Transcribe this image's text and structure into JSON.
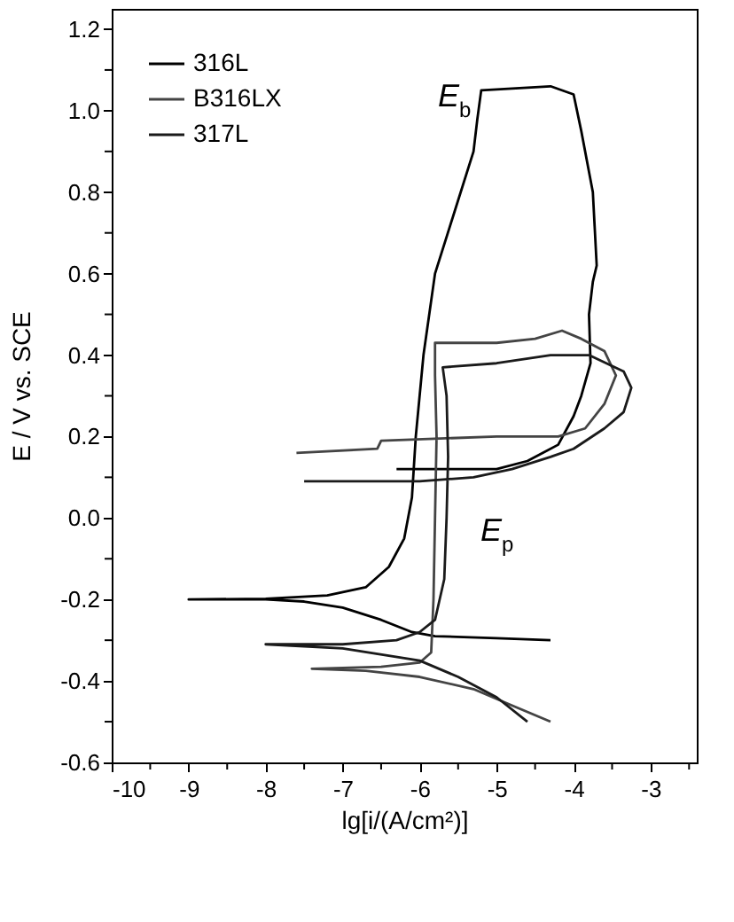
{
  "chart_data": {
    "type": "line",
    "xlabel": "lg[i/(A/cm²)]",
    "ylabel": "E / V vs. SCE",
    "xlim": [
      -10,
      -2.4
    ],
    "ylim": [
      -0.6,
      1.25
    ],
    "xticks": [
      {
        "value": -10,
        "label": "-10"
      },
      {
        "value": -9.5,
        "label": null
      },
      {
        "value": -9,
        "label": "-9"
      },
      {
        "value": -8.5,
        "label": null
      },
      {
        "value": -8,
        "label": "-8"
      },
      {
        "value": -7.5,
        "label": null
      },
      {
        "value": -7,
        "label": "-7"
      },
      {
        "value": -6.5,
        "label": null
      },
      {
        "value": -6,
        "label": "-6"
      },
      {
        "value": -5.5,
        "label": null
      },
      {
        "value": -5,
        "label": "-5"
      },
      {
        "value": -4.5,
        "label": null
      },
      {
        "value": -4,
        "label": "-4"
      },
      {
        "value": -3.5,
        "label": null
      },
      {
        "value": -3,
        "label": "-3"
      },
      {
        "value": -2.5,
        "label": null
      }
    ],
    "yticks": [
      {
        "value": -0.6,
        "label": "-0.6"
      },
      {
        "value": -0.5,
        "label": null
      },
      {
        "value": -0.4,
        "label": "-0.4"
      },
      {
        "value": -0.3,
        "label": null
      },
      {
        "value": -0.2,
        "label": "-0.2"
      },
      {
        "value": -0.1,
        "label": null
      },
      {
        "value": 0,
        "label": "0.0"
      },
      {
        "value": 0.1,
        "label": null
      },
      {
        "value": 0.2,
        "label": "0.2"
      },
      {
        "value": 0.3,
        "label": null
      },
      {
        "value": 0.4,
        "label": "0.4"
      },
      {
        "value": 0.5,
        "label": null
      },
      {
        "value": 0.6,
        "label": "0.6"
      },
      {
        "value": 0.7,
        "label": null
      },
      {
        "value": 0.8,
        "label": "0.8"
      },
      {
        "value": 0.9,
        "label": null
      },
      {
        "value": 1.0,
        "label": "1.0"
      },
      {
        "value": 1.1,
        "label": null
      },
      {
        "value": 1.2,
        "label": "1.2"
      }
    ],
    "grid": false,
    "legend": "top left",
    "marker": "none",
    "line_style": "solid",
    "annotations": [
      "E$_{b}$",
      "E$_{p}$"
    ],
    "series": [
      {
        "name": "316L",
        "color": "#000000",
        "x": [
          -4.3,
          -5,
          -5.8,
          -6.1,
          -6.5,
          -7,
          -7.5,
          -8,
          -9,
          -8,
          -7.2,
          -6.7,
          -6.4,
          -6.2,
          -6.1,
          -6.05,
          -5.95,
          -5.8,
          -5.55,
          -5.3,
          -5.25,
          -5.2,
          -4.3,
          -4.0,
          -3.9,
          -3.75,
          -3.7,
          -3.75,
          -3.8,
          -3.78,
          -3.9,
          -4.0,
          -4.2,
          -4.6,
          -5,
          -6.3
        ],
        "values": [
          -0.3,
          -0.295,
          -0.29,
          -0.28,
          -0.25,
          -0.22,
          -0.205,
          -0.2,
          -0.2,
          -0.198,
          -0.19,
          -0.17,
          -0.12,
          -0.05,
          0.05,
          0.2,
          0.4,
          0.6,
          0.75,
          0.9,
          0.98,
          1.05,
          1.06,
          1.04,
          0.95,
          0.8,
          0.62,
          0.58,
          0.5,
          0.38,
          0.3,
          0.25,
          0.18,
          0.14,
          0.12,
          0.12
        ]
      },
      {
        "name": "B316LX",
        "color": "#444444",
        "x": [
          -4.3,
          -4.8,
          -5.3,
          -6,
          -6.7,
          -7.4,
          -6.5,
          -6,
          -5.85,
          -5.82,
          -5.8,
          -5.78,
          -5.8,
          -5.8,
          -5,
          -4.5,
          -4.15,
          -3.9,
          -3.6,
          -3.45,
          -3.6,
          -3.85,
          -4.2,
          -5,
          -6.5,
          -6.55,
          -7.6
        ],
        "values": [
          -0.5,
          -0.46,
          -0.42,
          -0.39,
          -0.375,
          -0.37,
          -0.365,
          -0.355,
          -0.33,
          -0.2,
          0,
          0.2,
          0.35,
          0.43,
          0.43,
          0.44,
          0.46,
          0.44,
          0.41,
          0.35,
          0.28,
          0.22,
          0.2,
          0.2,
          0.19,
          0.17,
          0.16
        ]
      },
      {
        "name": "317L",
        "color": "#1a1a1a",
        "x": [
          -4.6,
          -5,
          -5.5,
          -6,
          -7,
          -8,
          -7,
          -6.3,
          -6,
          -5.8,
          -5.68,
          -5.65,
          -5.63,
          -5.65,
          -5.7,
          -5,
          -4.3,
          -3.8,
          -3.35,
          -3.25,
          -3.35,
          -3.6,
          -4,
          -4.3,
          -4.8,
          -5.3,
          -6,
          -7.5
        ],
        "values": [
          -0.5,
          -0.44,
          -0.39,
          -0.35,
          -0.32,
          -0.31,
          -0.31,
          -0.3,
          -0.28,
          -0.25,
          -0.15,
          0,
          0.15,
          0.3,
          0.37,
          0.38,
          0.4,
          0.4,
          0.36,
          0.32,
          0.26,
          0.22,
          0.17,
          0.15,
          0.12,
          0.1,
          0.09,
          0.09
        ]
      }
    ]
  }
}
